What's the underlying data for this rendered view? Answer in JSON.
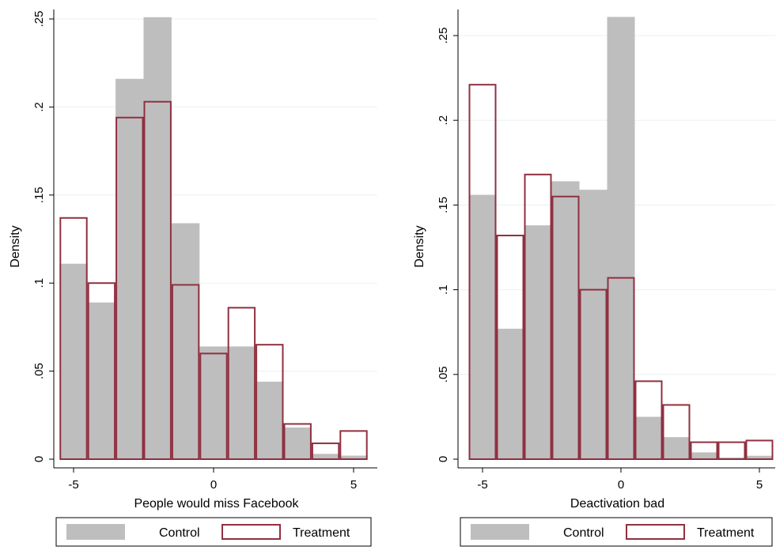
{
  "chart_data": [
    {
      "type": "bar",
      "xlabel": "People would miss Facebook",
      "ylabel": "Density",
      "xlim": [
        -5.5,
        5.7
      ],
      "ylim": [
        0,
        0.25
      ],
      "xticks": [
        "-5",
        "0",
        "5"
      ],
      "xtick_values": [
        -5,
        0,
        5
      ],
      "yticks": [
        "0",
        ".05",
        ".1",
        ".15",
        ".2",
        ".25"
      ],
      "ytick_values": [
        0,
        0.05,
        0.1,
        0.15,
        0.2,
        0.25
      ],
      "grid": true,
      "legend_position": "bottom",
      "bin_edges": [
        -5.5,
        -4.5,
        -3.5,
        -2.5,
        -1.5,
        -0.5,
        0.5,
        1.5,
        2.5,
        3.5,
        4.5,
        5.5
      ],
      "series": [
        {
          "name": "Control",
          "color": "#bebebe",
          "style": "filled",
          "values": [
            0.111,
            0.089,
            0.216,
            0.251,
            0.134,
            0.064,
            0.064,
            0.044,
            0.018,
            0.003,
            0.002
          ]
        },
        {
          "name": "Treatment",
          "color": "#903040",
          "style": "outline",
          "values": [
            0.137,
            0.1,
            0.194,
            0.203,
            0.099,
            0.06,
            0.086,
            0.065,
            0.02,
            0.009,
            0.016
          ]
        }
      ]
    },
    {
      "type": "bar",
      "xlabel": "Deactivation bad",
      "ylabel": "Density",
      "xlim": [
        -5.5,
        5.7
      ],
      "ylim": [
        0,
        0.25
      ],
      "xticks": [
        "-5",
        "0",
        "5"
      ],
      "xtick_values": [
        -5,
        0,
        5
      ],
      "yticks": [
        "0",
        ".05",
        ".1",
        ".15",
        ".2",
        ".25"
      ],
      "ytick_values": [
        0,
        0.05,
        0.1,
        0.15,
        0.2,
        0.25
      ],
      "grid": true,
      "legend_position": "bottom",
      "bin_edges": [
        -5.5,
        -4.5,
        -3.5,
        -2.5,
        -1.5,
        -0.5,
        0.5,
        1.5,
        2.5,
        3.5,
        4.5,
        5.5
      ],
      "series": [
        {
          "name": "Control",
          "color": "#bebebe",
          "style": "filled",
          "values": [
            0.156,
            0.077,
            0.138,
            0.164,
            0.159,
            0.261,
            0.025,
            0.013,
            0.004,
            0.001,
            0.002
          ]
        },
        {
          "name": "Treatment",
          "color": "#903040",
          "style": "outline",
          "values": [
            0.221,
            0.132,
            0.168,
            0.155,
            0.1,
            0.107,
            0.046,
            0.032,
            0.01,
            0.01,
            0.011
          ]
        }
      ]
    }
  ]
}
